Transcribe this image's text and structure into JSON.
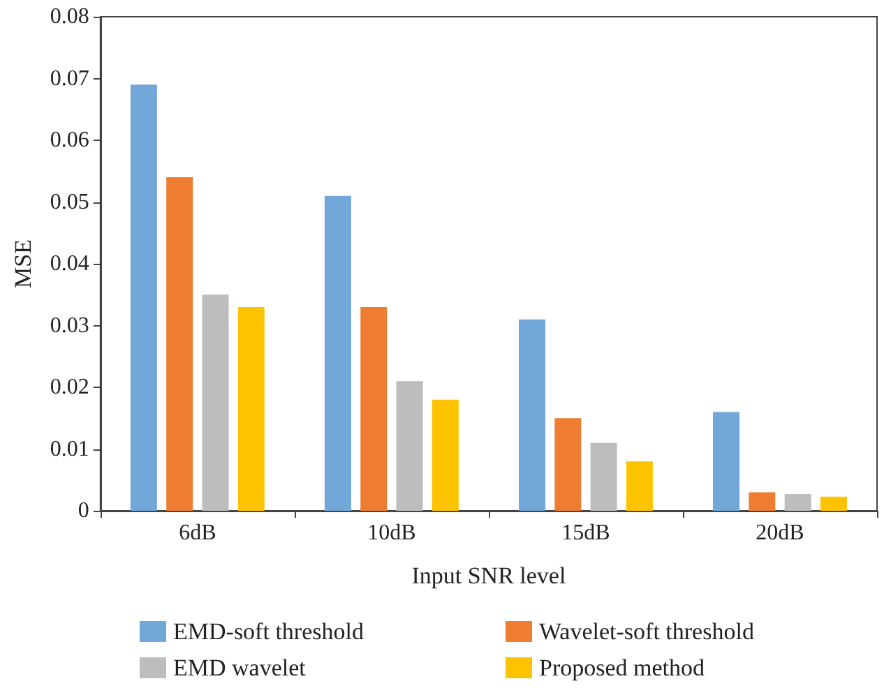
{
  "chart_data": {
    "type": "bar",
    "xlabel": "Input SNR level",
    "ylabel": "MSE",
    "categories": [
      "6dB",
      "10dB",
      "15dB",
      "20dB"
    ],
    "series": [
      {
        "name": "EMD-soft threshold",
        "color": "#72a7d9",
        "values": [
          0.069,
          0.051,
          0.031,
          0.016
        ]
      },
      {
        "name": "Wavelet-soft threshold",
        "color": "#ee7d31",
        "values": [
          0.054,
          0.033,
          0.015,
          0.003
        ]
      },
      {
        "name": "EMD wavelet",
        "color": "#bdbdbd",
        "values": [
          0.035,
          0.021,
          0.011,
          0.0027
        ]
      },
      {
        "name": "Proposed method",
        "color": "#fec300",
        "values": [
          0.033,
          0.018,
          0.008,
          0.0023
        ]
      }
    ],
    "ylim": [
      0,
      0.08
    ],
    "yticks": [
      0,
      0.01,
      0.02,
      0.03,
      0.04,
      0.05,
      0.06,
      0.07,
      0.08
    ],
    "grid": false,
    "legend": "bottom"
  }
}
